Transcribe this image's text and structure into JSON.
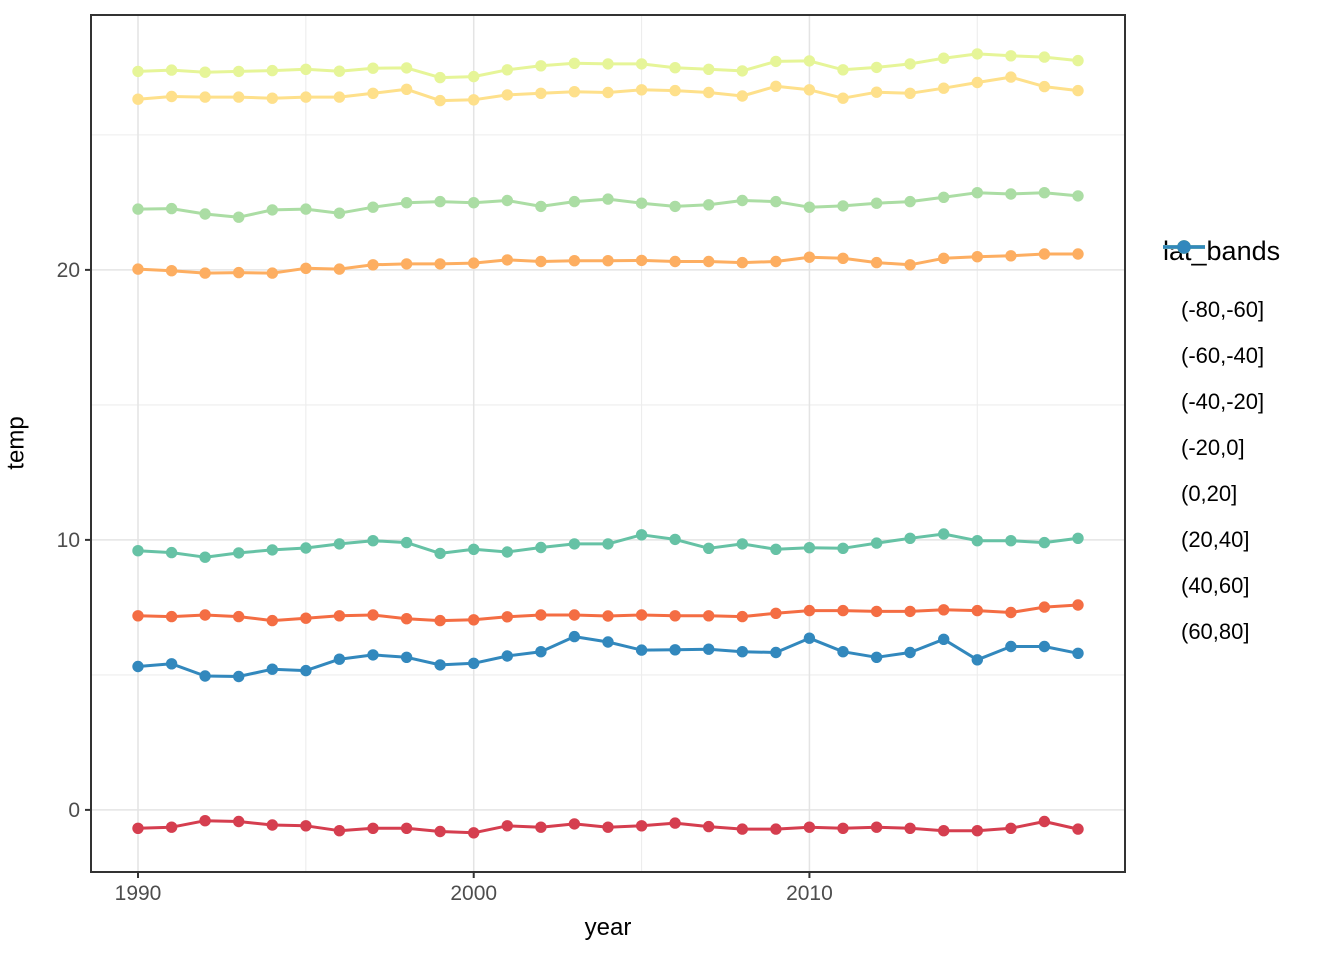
{
  "chart_data": {
    "type": "line",
    "title": "",
    "xlabel": "year",
    "ylabel": "temp",
    "legend_title": "lat_bands",
    "legend_position": "right",
    "grid": true,
    "xlim": [
      1988.6,
      2019.4
    ],
    "ylim": [
      -2.3,
      29.44
    ],
    "x_ticks": [
      1990,
      2000,
      2010
    ],
    "x_minor_ticks": [
      1995,
      2005,
      2015
    ],
    "y_ticks": [
      0,
      10,
      20
    ],
    "y_minor_ticks": [
      5,
      15,
      25
    ],
    "x": [
      1990,
      1991,
      1992,
      1993,
      1994,
      1995,
      1996,
      1997,
      1998,
      1999,
      2000,
      2001,
      2002,
      2003,
      2004,
      2005,
      2006,
      2007,
      2008,
      2009,
      2010,
      2011,
      2012,
      2013,
      2014,
      2015,
      2016,
      2017,
      2018
    ],
    "series": [
      {
        "name": "(-80,-60]",
        "color": "#d53e4f",
        "values": [
          -0.68,
          -0.64,
          -0.4,
          -0.43,
          -0.56,
          -0.59,
          -0.77,
          -0.68,
          -0.68,
          -0.8,
          -0.85,
          -0.59,
          -0.64,
          -0.52,
          -0.64,
          -0.59,
          -0.49,
          -0.62,
          -0.71,
          -0.71,
          -0.64,
          -0.68,
          -0.64,
          -0.68,
          -0.77,
          -0.77,
          -0.68,
          -0.43,
          -0.71
        ]
      },
      {
        "name": "(-60,-40]",
        "color": "#f46d43",
        "values": [
          7.19,
          7.16,
          7.22,
          7.16,
          7.01,
          7.1,
          7.19,
          7.22,
          7.08,
          7.01,
          7.04,
          7.15,
          7.22,
          7.22,
          7.18,
          7.22,
          7.19,
          7.19,
          7.16,
          7.28,
          7.38,
          7.38,
          7.35,
          7.35,
          7.41,
          7.38,
          7.31,
          7.51,
          7.59
        ]
      },
      {
        "name": "(-40,-20]",
        "color": "#fdae61",
        "values": [
          20.03,
          19.97,
          19.88,
          19.9,
          19.88,
          20.06,
          20.03,
          20.19,
          20.22,
          20.22,
          20.25,
          20.37,
          20.31,
          20.34,
          20.34,
          20.35,
          20.31,
          20.31,
          20.27,
          20.31,
          20.47,
          20.43,
          20.27,
          20.19,
          20.43,
          20.49,
          20.52,
          20.59,
          20.59
        ]
      },
      {
        "name": "(-20,0]",
        "color": "#fee08b",
        "values": [
          26.32,
          26.42,
          26.4,
          26.4,
          26.36,
          26.4,
          26.4,
          26.54,
          26.69,
          26.27,
          26.3,
          26.48,
          26.54,
          26.6,
          26.57,
          26.67,
          26.64,
          26.57,
          26.44,
          26.8,
          26.67,
          26.36,
          26.58,
          26.54,
          26.73,
          26.94,
          27.14,
          26.79,
          26.64
        ]
      },
      {
        "name": "(0,20]",
        "color": "#e6f598",
        "values": [
          27.35,
          27.4,
          27.32,
          27.35,
          27.38,
          27.43,
          27.36,
          27.47,
          27.48,
          27.12,
          27.16,
          27.41,
          27.56,
          27.65,
          27.63,
          27.63,
          27.49,
          27.43,
          27.37,
          27.72,
          27.74,
          27.41,
          27.5,
          27.63,
          27.84,
          28.0,
          27.93,
          27.88,
          27.75
        ]
      },
      {
        "name": "(20,40]",
        "color": "#abdda4",
        "values": [
          22.25,
          22.27,
          22.07,
          21.95,
          22.22,
          22.25,
          22.1,
          22.32,
          22.49,
          22.53,
          22.49,
          22.57,
          22.35,
          22.53,
          22.62,
          22.47,
          22.35,
          22.41,
          22.57,
          22.53,
          22.32,
          22.37,
          22.47,
          22.53,
          22.69,
          22.86,
          22.81,
          22.86,
          22.74
        ]
      },
      {
        "name": "(40,60]",
        "color": "#66c2a5",
        "values": [
          9.6,
          9.53,
          9.36,
          9.52,
          9.63,
          9.7,
          9.85,
          9.97,
          9.9,
          9.5,
          9.65,
          9.55,
          9.72,
          9.85,
          9.85,
          10.19,
          10.02,
          9.69,
          9.85,
          9.65,
          9.71,
          9.69,
          9.88,
          10.06,
          10.22,
          9.97,
          9.97,
          9.9,
          10.06
        ]
      },
      {
        "name": "(60,80]",
        "color": "#3288bd",
        "values": [
          5.31,
          5.41,
          4.96,
          4.94,
          5.21,
          5.16,
          5.58,
          5.74,
          5.65,
          5.37,
          5.43,
          5.7,
          5.86,
          6.42,
          6.22,
          5.92,
          5.93,
          5.95,
          5.86,
          5.83,
          6.36,
          5.86,
          5.65,
          5.83,
          6.32,
          5.56,
          6.05,
          6.05,
          5.8
        ]
      }
    ]
  },
  "style": {
    "panel_border_color": "#333333",
    "grid_major_color": "#e4e4e4",
    "grid_minor_color": "#ededed",
    "tick_color": "#333333",
    "tick_label_color": "#4d4d4d",
    "point_radius": 5.7,
    "line_width": 3
  }
}
